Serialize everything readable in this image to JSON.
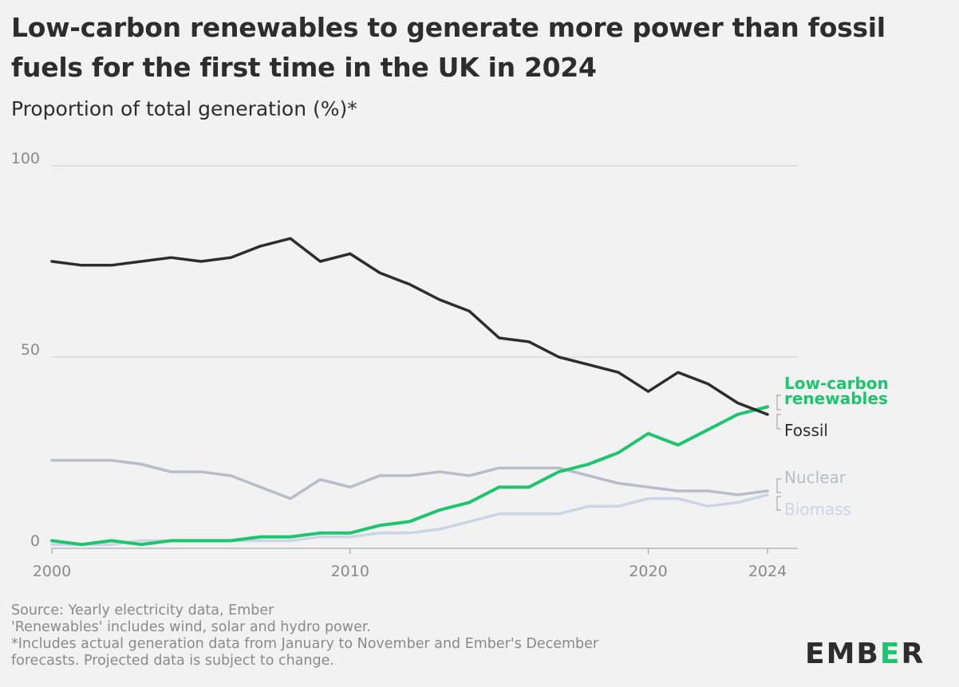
{
  "title": "Low-carbon renewables to generate more power than fossil fuels for the first time in the UK in 2024",
  "subtitle": "Proportion of total generation (%)*",
  "footer": {
    "source": "Source: Yearly electricity data, Ember",
    "note1": "'Renewables' includes wind, solar and hydro power.",
    "note2": "*Includes actual generation data from January to November and Ember's December",
    "note3": "forecasts. Projected data is subject to change."
  },
  "logo": {
    "text_before": "EMB",
    "accent": "E",
    "text_after": "R"
  },
  "colors": {
    "fossil": "#2d2d2d",
    "renewables": "#1dc56e",
    "nuclear": "#b9bcc9",
    "biomass": "#ccd5e6",
    "grid": "#cfcfcf",
    "axis_text": "#8a8a8a"
  },
  "chart_data": {
    "type": "line",
    "x": [
      2000,
      2001,
      2002,
      2003,
      2004,
      2005,
      2006,
      2007,
      2008,
      2009,
      2010,
      2011,
      2012,
      2013,
      2014,
      2015,
      2016,
      2017,
      2018,
      2019,
      2020,
      2021,
      2022,
      2023,
      2024
    ],
    "xticks": [
      "2000",
      "2010",
      "2020",
      "2024"
    ],
    "yticks": [
      "0",
      "50",
      "100"
    ],
    "ylim": [
      0,
      100
    ],
    "series": [
      {
        "key": "fossil",
        "name": "Fossil",
        "values": [
          75,
          74,
          74,
          75,
          76,
          75,
          76,
          79,
          81,
          75,
          77,
          72,
          69,
          65,
          62,
          55,
          54,
          50,
          48,
          46,
          41,
          46,
          43,
          38,
          35
        ]
      },
      {
        "key": "renewables",
        "name": "Low-carbon renewables",
        "name_lines": [
          "Low-carbon",
          "renewables"
        ],
        "values": [
          2,
          1,
          2,
          1,
          2,
          2,
          2,
          3,
          3,
          4,
          4,
          6,
          7,
          10,
          12,
          16,
          16,
          20,
          22,
          25,
          30,
          27,
          31,
          35,
          37
        ]
      },
      {
        "key": "nuclear",
        "name": "Nuclear",
        "values": [
          23,
          23,
          23,
          22,
          20,
          20,
          19,
          16,
          13,
          18,
          16,
          19,
          19,
          20,
          19,
          21,
          21,
          21,
          19,
          17,
          16,
          15,
          15,
          14,
          15
        ]
      },
      {
        "key": "biomass",
        "name": "Biomass",
        "values": [
          1,
          1,
          1,
          2,
          2,
          2,
          2,
          2,
          2,
          3,
          3,
          4,
          4,
          5,
          7,
          9,
          9,
          9,
          11,
          11,
          13,
          13,
          11,
          12,
          14
        ]
      }
    ]
  }
}
